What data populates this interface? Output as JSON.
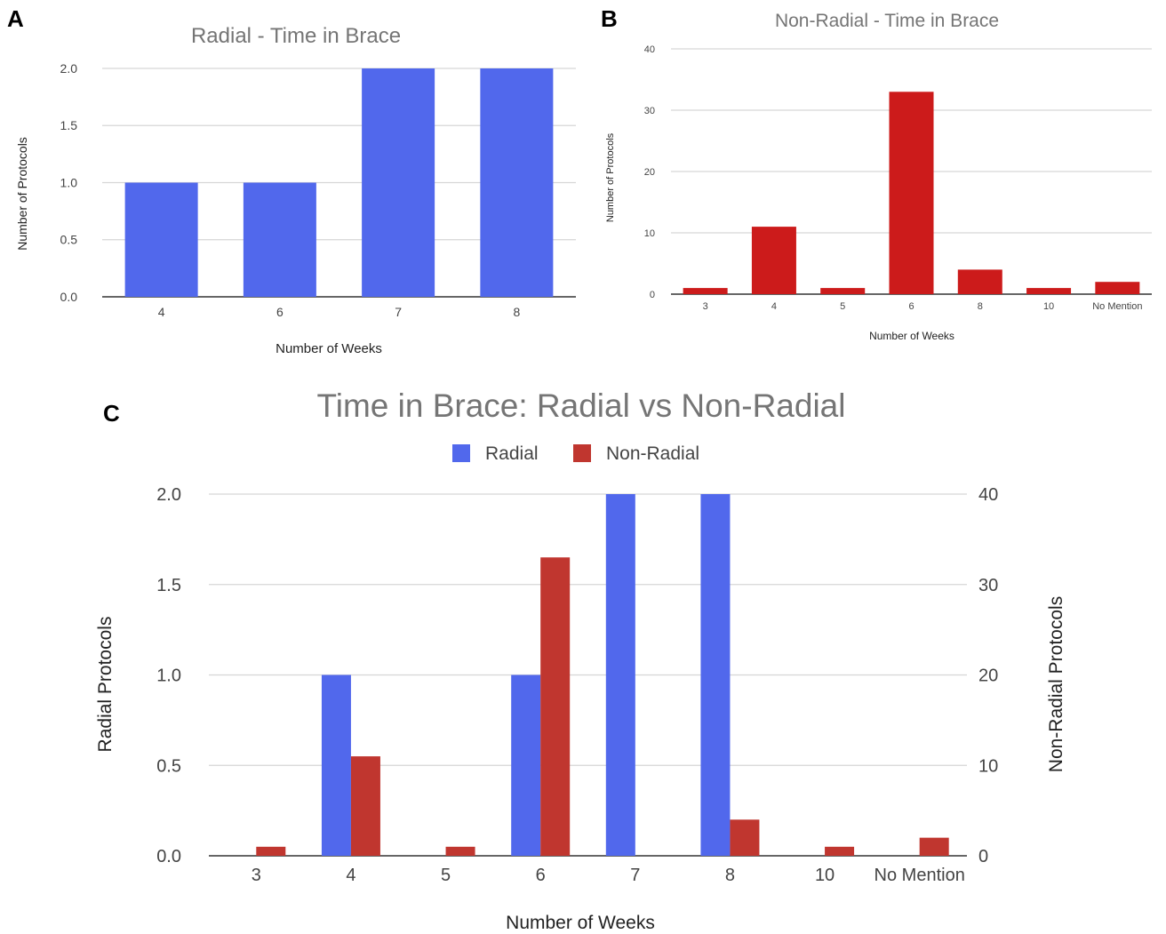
{
  "panels": {
    "a": "A",
    "b": "B",
    "c": "C"
  },
  "colors": {
    "radial": "#5168ec",
    "non_radial_b": "#cc1b1b",
    "non_radial_c": "#c0362f"
  },
  "chart_data": [
    {
      "id": "A",
      "type": "bar",
      "title": "Radial - Time in Brace",
      "xlabel": "Number of Weeks",
      "ylabel": "Number of Protocols",
      "categories": [
        "4",
        "6",
        "7",
        "8"
      ],
      "values": [
        1,
        1,
        2,
        2
      ],
      "ylim": [
        0,
        2
      ],
      "yticks": [
        "0.0",
        "0.5",
        "1.0",
        "1.5",
        "2.0"
      ],
      "grid": true
    },
    {
      "id": "B",
      "type": "bar",
      "title": "Non-Radial - Time in Brace",
      "xlabel": "Number of Weeks",
      "ylabel": "Number of Protocols",
      "categories": [
        "3",
        "4",
        "5",
        "6",
        "8",
        "10",
        "No Mention"
      ],
      "values": [
        1,
        11,
        1,
        33,
        4,
        1,
        2
      ],
      "ylim": [
        0,
        40
      ],
      "yticks": [
        "0",
        "10",
        "20",
        "30",
        "40"
      ],
      "grid": true
    },
    {
      "id": "C",
      "type": "bar",
      "title": "Time in Brace: Radial vs Non-Radial",
      "xlabel": "Number of Weeks",
      "ylabel": "Radial Protocols",
      "ylabel_right": "Non-Radial Protocols",
      "categories": [
        "3",
        "4",
        "5",
        "6",
        "7",
        "8",
        "10",
        "No Mention"
      ],
      "series": [
        {
          "name": "Radial",
          "axis": "left",
          "values": [
            0,
            1,
            0,
            1,
            2,
            2,
            0,
            0
          ]
        },
        {
          "name": "Non-Radial",
          "axis": "right",
          "values": [
            1,
            11,
            1,
            33,
            0,
            4,
            1,
            2
          ]
        }
      ],
      "ylim": [
        0,
        2
      ],
      "ylim_right": [
        0,
        40
      ],
      "yticks": [
        "0.0",
        "0.5",
        "1.0",
        "1.5",
        "2.0"
      ],
      "yticks_right": [
        "0",
        "10",
        "20",
        "30",
        "40"
      ],
      "legend": "top-center",
      "grid": true
    }
  ]
}
